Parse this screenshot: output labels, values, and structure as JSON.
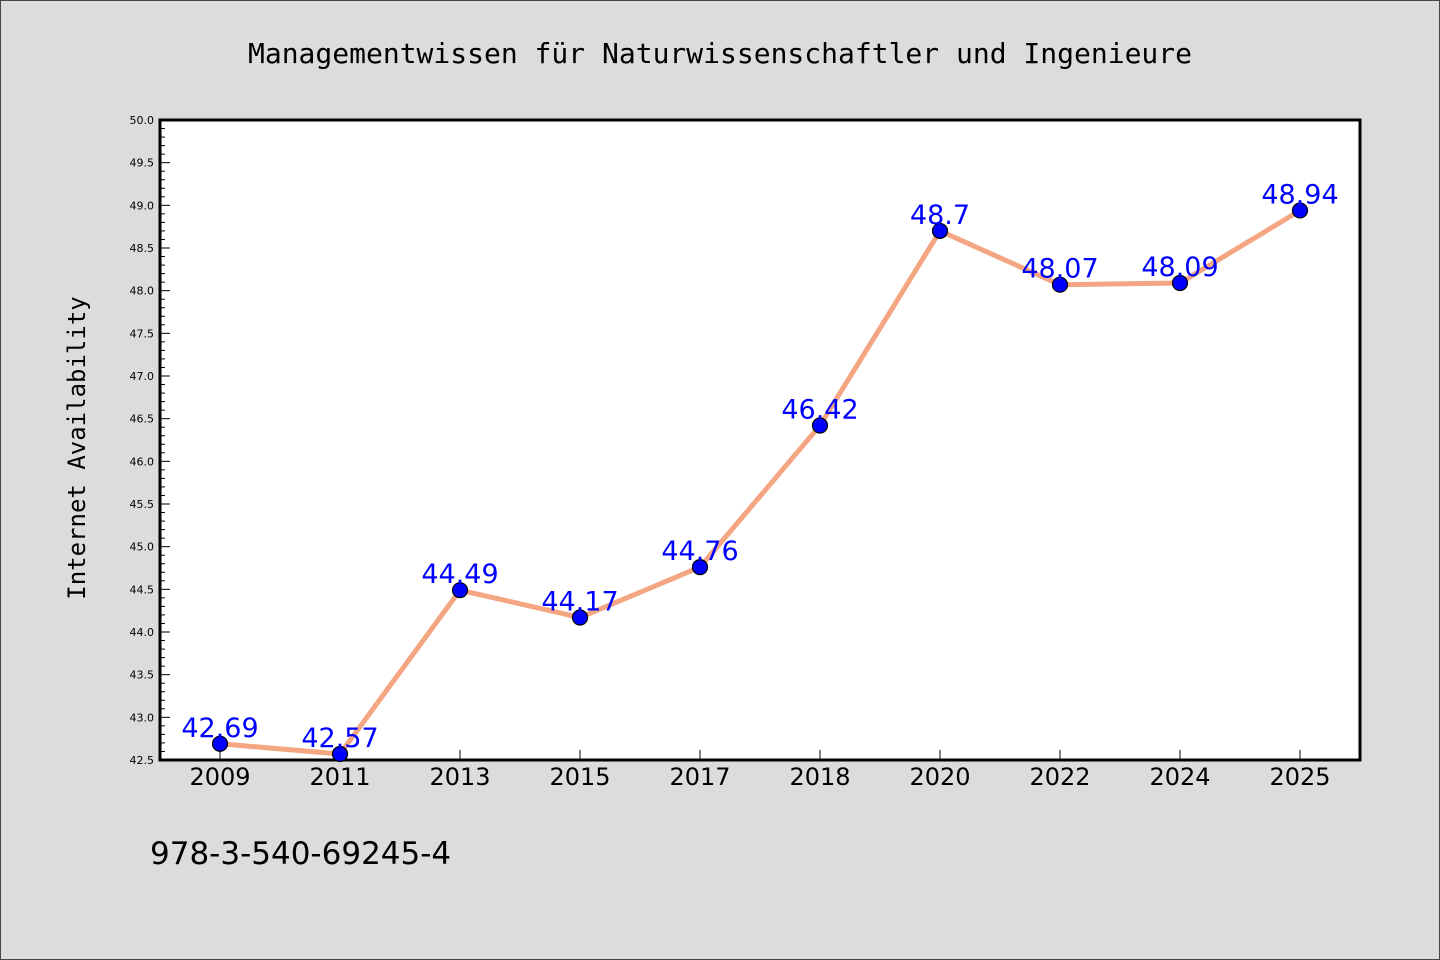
{
  "chart_data": {
    "type": "line",
    "title": "Managementwissen für Naturwissenschaftler und Ingenieure",
    "xlabel": "",
    "ylabel": "Internet Availability",
    "categories": [
      "2009",
      "2011",
      "2013",
      "2015",
      "2017",
      "2018",
      "2020",
      "2022",
      "2024",
      "2025"
    ],
    "series": [
      {
        "values": [
          42.69,
          42.57,
          44.49,
          44.17,
          44.76,
          46.42,
          48.7,
          48.07,
          48.09,
          48.94
        ],
        "data_labels": [
          "42.69",
          "42.57",
          "44.49",
          "44.17",
          "44.76",
          "46.42",
          "48.7",
          "48.07",
          "48.09",
          "48.94"
        ]
      }
    ],
    "ylim": [
      42.5,
      50.0
    ],
    "y_ticks": [
      "42.5",
      "43.0",
      "43.5",
      "44.0",
      "44.5",
      "45.0",
      "45.5",
      "46.0",
      "46.5",
      "47.0",
      "47.5",
      "48.0",
      "48.5",
      "49.0",
      "49.5",
      "50.0"
    ],
    "grid": false,
    "legend": "none"
  },
  "footer_text": "978-3-540-69245-4",
  "colors": {
    "background": "#dcdcdc",
    "plot_area": "#ffffff",
    "line": "#f4a582",
    "marker": "#0000ff",
    "data_label": "#0000ff",
    "text": "#000000"
  }
}
